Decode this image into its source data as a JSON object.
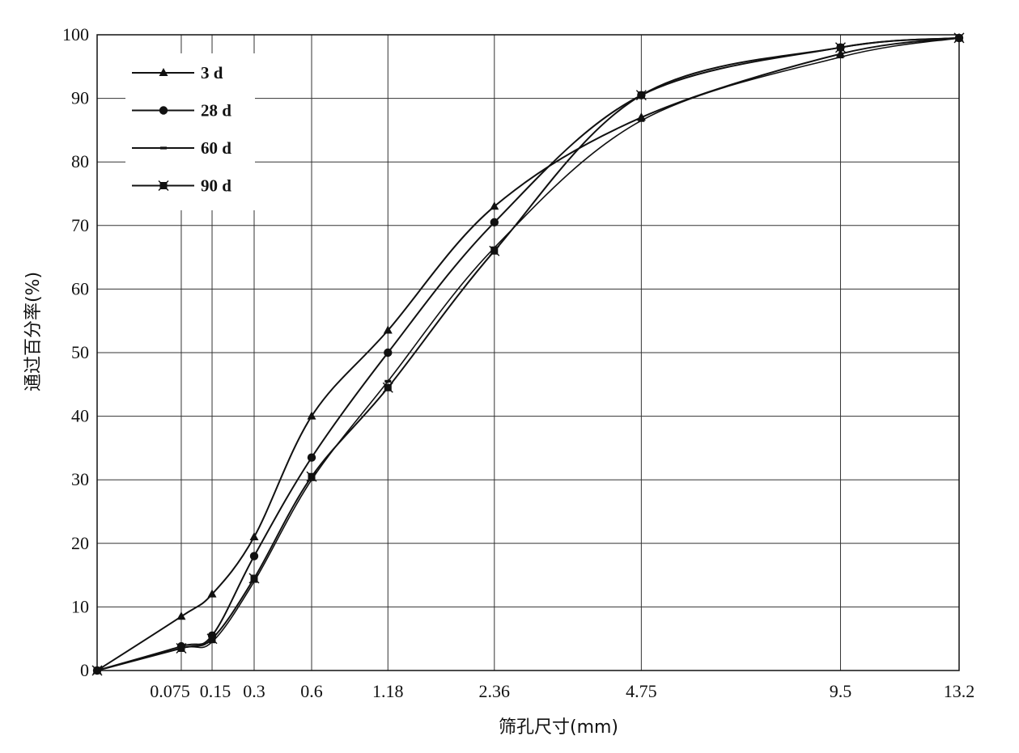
{
  "chart_data": {
    "type": "line",
    "title": "",
    "xlabel": "筛孔尺寸(mm)",
    "ylabel": "通过百分率(%)",
    "x_origin_label": "",
    "categories": [
      "0.075",
      "0.15",
      "0.3",
      "0.6",
      "1.18",
      "2.36",
      "4.75",
      "9.5",
      "13.2"
    ],
    "x": [
      0,
      0.075,
      0.15,
      0.3,
      0.6,
      1.18,
      2.36,
      4.75,
      9.5,
      13.2
    ],
    "x_scale": "power-0.45 (sieve gradation scale)",
    "xlim": [
      0,
      13.2
    ],
    "ylim": [
      0,
      100
    ],
    "yticks": [
      0,
      10,
      20,
      30,
      40,
      50,
      60,
      70,
      80,
      90,
      100
    ],
    "grid": true,
    "legend_position": "top-left",
    "series": [
      {
        "name": "3 d",
        "marker": "triangle",
        "values": [
          0,
          8.5,
          12,
          21,
          40,
          53.5,
          73,
          87,
          97,
          99.5
        ]
      },
      {
        "name": "28 d",
        "marker": "circle",
        "values": [
          0,
          3.8,
          5.5,
          18,
          33.5,
          50,
          70.5,
          90.5,
          98,
          99.5
        ]
      },
      {
        "name": "60 d",
        "marker": "dash",
        "values": [
          0,
          3.5,
          4.5,
          14,
          30,
          45.5,
          66.5,
          86.5,
          96.5,
          99.5
        ]
      },
      {
        "name": "90 d",
        "marker": "x-square",
        "values": [
          0,
          3.5,
          5,
          14.5,
          30.5,
          44.5,
          66,
          90.5,
          98,
          99.5
        ]
      }
    ],
    "colors": {
      "line": "#111111",
      "grid": "#333333",
      "background": "#ffffff"
    }
  }
}
